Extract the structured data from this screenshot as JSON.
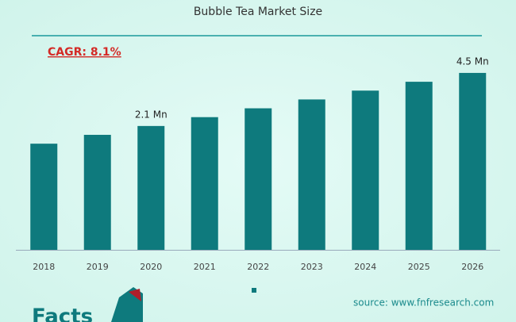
{
  "chart_data": {
    "type": "bar",
    "title": "Bubble Tea Market Size",
    "annotation": "CAGR: 8.1%",
    "source": "source: www.fnfresearch.com",
    "logo": "Facts",
    "categories": [
      "2018",
      "2019",
      "2020",
      "2021",
      "2022",
      "2023",
      "2024",
      "2025",
      "2026"
    ],
    "values": [
      1.3,
      1.7,
      2.1,
      2.5,
      2.9,
      3.3,
      3.7,
      4.1,
      4.5
    ],
    "value_labels": [
      null,
      null,
      "2.1 Mn",
      null,
      null,
      null,
      null,
      null,
      "4.5 Mn"
    ],
    "color": "#0e7a7d",
    "ylim": [
      -3.5,
      5
    ]
  }
}
